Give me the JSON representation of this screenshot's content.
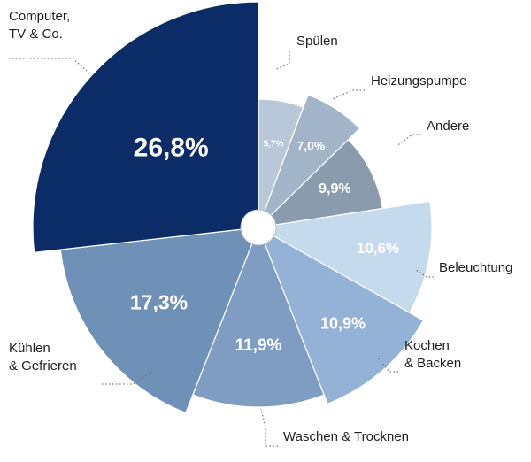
{
  "chart_data": {
    "type": "pie",
    "title": "",
    "slices": [
      {
        "label": "Spülen",
        "value": 5.7,
        "display": "5,7%",
        "color": "#b9c8d9"
      },
      {
        "label": "Heizungspumpe",
        "value": 7.0,
        "display": "7,0%",
        "color": "#a2b4c7"
      },
      {
        "label": "Andere",
        "value": 9.9,
        "display": "9,9%",
        "color": "#8a9bae"
      },
      {
        "label": "Beleuchtung",
        "value": 10.6,
        "display": "10,6%",
        "color": "#c6daed"
      },
      {
        "label": "Kochen & Backen",
        "value": 10.9,
        "display": "10,9%",
        "color": "#94b2d5"
      },
      {
        "label": "Waschen & Trocknen",
        "value": 11.9,
        "display": "11,9%",
        "color": "#7f9dc2"
      },
      {
        "label": "Kühlen & Gefrieren",
        "value": 17.3,
        "display": "17,3%",
        "color": "#7091b7"
      },
      {
        "label": "Computer, TV & Co.",
        "value": 26.8,
        "display": "26,8%",
        "color": "#0b2c66"
      }
    ]
  }
}
